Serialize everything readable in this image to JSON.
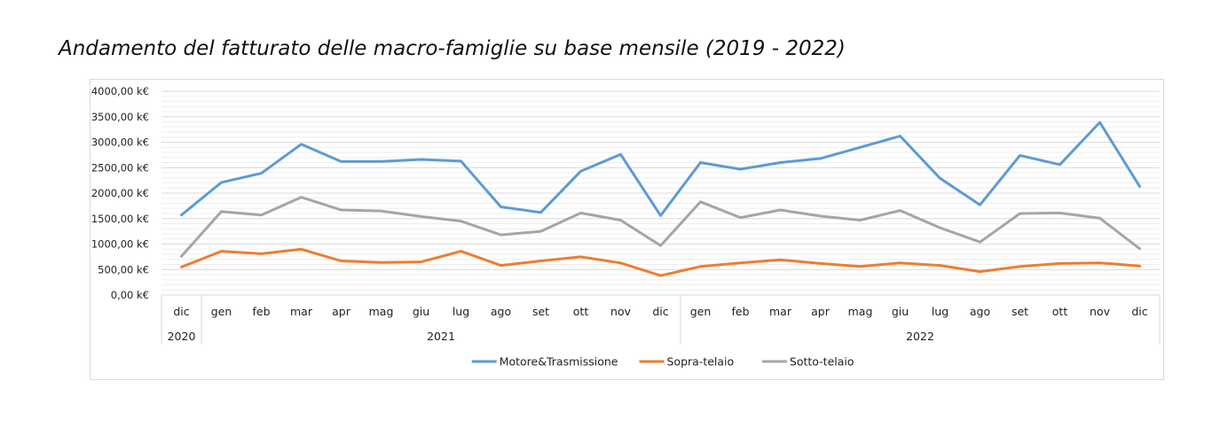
{
  "title": "Andamento del fatturato delle macro-famiglie su base mensile (2019 - 2022)",
  "chart_data": {
    "type": "line",
    "title": "",
    "xlabel": "",
    "ylabel": "",
    "ylim": [
      0,
      4000
    ],
    "yticks": [
      {
        "v": 0,
        "label": "0,00 k€"
      },
      {
        "v": 500,
        "label": "500,00 k€"
      },
      {
        "v": 1000,
        "label": "1000,00 k€"
      },
      {
        "v": 1500,
        "label": "1500,00 k€"
      },
      {
        "v": 2000,
        "label": "2000,00 k€"
      },
      {
        "v": 2500,
        "label": "2500,00 k€"
      },
      {
        "v": 3000,
        "label": "3000,00 k€"
      },
      {
        "v": 3500,
        "label": "3500,00 k€"
      },
      {
        "v": 4000,
        "label": "4000,00 k€"
      }
    ],
    "categories": [
      "dic",
      "gen",
      "feb",
      "mar",
      "apr",
      "mag",
      "giu",
      "lug",
      "ago",
      "set",
      "ott",
      "nov",
      "dic",
      "gen",
      "feb",
      "mar",
      "apr",
      "mag",
      "giu",
      "lug",
      "ago",
      "set",
      "ott",
      "nov",
      "dic"
    ],
    "year_groups": [
      {
        "label": "2020",
        "start": 0,
        "end": 0
      },
      {
        "label": "2021",
        "start": 1,
        "end": 12
      },
      {
        "label": "2022",
        "start": 13,
        "end": 24
      }
    ],
    "grid": true,
    "legend_position": "bottom",
    "series": [
      {
        "name": "Motore&Trasmissione",
        "color": "#5b9bd5",
        "values": [
          1570,
          2210,
          2390,
          2960,
          2620,
          2620,
          2660,
          2630,
          1730,
          1620,
          2430,
          2760,
          1560,
          2600,
          2470,
          2600,
          2680,
          2900,
          3120,
          2290,
          1770,
          2740,
          2560,
          3390,
          2130
        ]
      },
      {
        "name": "Sopra-telaio",
        "color": "#ed7d31",
        "values": [
          550,
          860,
          810,
          900,
          670,
          640,
          650,
          860,
          580,
          670,
          750,
          630,
          380,
          560,
          630,
          690,
          620,
          560,
          630,
          580,
          460,
          560,
          620,
          630,
          570
        ]
      },
      {
        "name": "Sotto-telaio",
        "color": "#a5a5a5",
        "values": [
          760,
          1640,
          1570,
          1920,
          1670,
          1650,
          1540,
          1450,
          1180,
          1250,
          1610,
          1470,
          970,
          1830,
          1520,
          1670,
          1550,
          1470,
          1660,
          1320,
          1040,
          1600,
          1610,
          1510,
          910
        ]
      }
    ]
  }
}
